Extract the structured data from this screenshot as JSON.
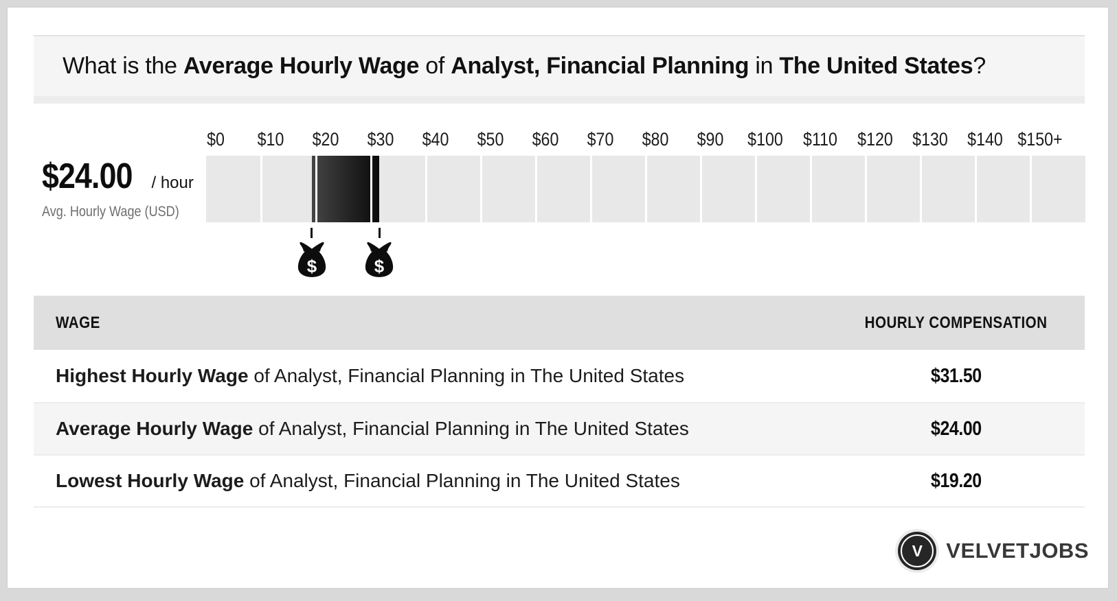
{
  "page": {
    "title_parts": [
      {
        "text": "What is the ",
        "bold": false
      },
      {
        "text": "Average Hourly Wage",
        "bold": true
      },
      {
        "text": " of ",
        "bold": false
      },
      {
        "text": "Analyst, Financial Planning",
        "bold": true
      },
      {
        "text": " in ",
        "bold": false
      },
      {
        "text": "The United States",
        "bold": true
      },
      {
        "text": "?",
        "bold": false
      }
    ]
  },
  "summary": {
    "amount": "$24.00",
    "per": "/ hour",
    "caption": "Avg. Hourly Wage (USD)"
  },
  "chart_data": {
    "type": "bar",
    "subtype": "horizontal-wage-range-scale",
    "title": "Hourly wage scale for Analyst, Financial Planning in The United States",
    "tick_labels": [
      "$0",
      "$10",
      "$20",
      "$30",
      "$40",
      "$50",
      "$60",
      "$70",
      "$80",
      "$90",
      "$100",
      "$110",
      "$120",
      "$130",
      "$140",
      "$150+"
    ],
    "axis_min": 0,
    "axis_max": 160,
    "segment_size": 10,
    "units": "USD per hour",
    "lowest_wage": 19.2,
    "average_wage": 24.0,
    "highest_wage": 31.5,
    "marker_values": [
      19.2,
      31.5
    ],
    "money_bag_symbol": "$",
    "track_color": "#e8e8e8",
    "range_fill_start": "#454545",
    "range_fill_end": "#0a0a0a"
  },
  "table": {
    "headers": [
      "WAGE",
      "HOURLY COMPENSATION"
    ],
    "rows": [
      {
        "label_bold": "Highest Hourly Wage",
        "label_rest": " of Analyst, Financial Planning in The United States",
        "value": "$31.50"
      },
      {
        "label_bold": "Average Hourly Wage",
        "label_rest": " of Analyst, Financial Planning in The United States",
        "value": "$24.00"
      },
      {
        "label_bold": "Lowest Hourly Wage",
        "label_rest": " of Analyst, Financial Planning in The United States",
        "value": "$19.20"
      }
    ]
  },
  "footer": {
    "brand": "VELVETJOBS",
    "brand_initial": "V"
  },
  "colors": {
    "outer_background": "#d9d9d9",
    "card_background": "#ffffff",
    "title_background": "#f5f5f5",
    "table_header_background": "#dfdfdf",
    "row_alt_background": "#f5f5f5",
    "brand_dark": "#262626"
  }
}
